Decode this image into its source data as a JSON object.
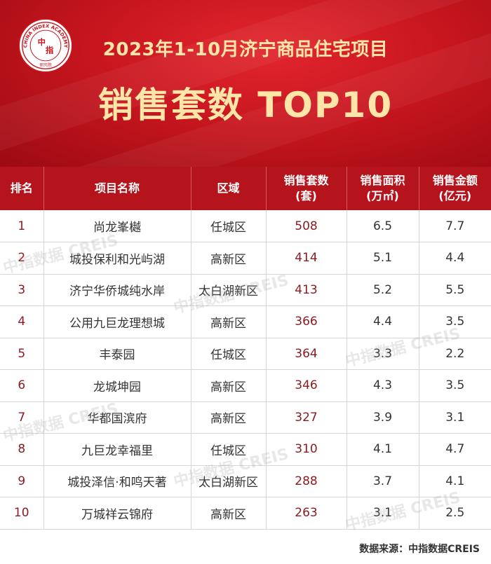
{
  "header": {
    "logo_text_ring": "CHINA INDEX ACADEMY",
    "logo_text_center_top": "中",
    "logo_text_center_bottom": "指",
    "logo_text_bottom": "研究院",
    "title_line1": "2023年1-10月济宁商品住宅项目",
    "title_line2": "销售套数 TOP10"
  },
  "table": {
    "columns": [
      {
        "label": "排名",
        "sub": ""
      },
      {
        "label": "项目名称",
        "sub": ""
      },
      {
        "label": "区域",
        "sub": ""
      },
      {
        "label": "销售套数",
        "sub": "(套)"
      },
      {
        "label": "销售面积",
        "sub": "(万㎡)"
      },
      {
        "label": "销售金额",
        "sub": "(亿元)"
      }
    ],
    "rows": [
      {
        "rank": "1",
        "name": "尚龙峯樾",
        "district": "任城区",
        "units": "508",
        "area": "6.5",
        "amount": "7.7"
      },
      {
        "rank": "2",
        "name": "城投保利和光屿湖",
        "district": "高新区",
        "units": "414",
        "area": "5.1",
        "amount": "4.4"
      },
      {
        "rank": "3",
        "name": "济宁华侨城纯水岸",
        "district": "太白湖新区",
        "units": "413",
        "area": "5.2",
        "amount": "5.5"
      },
      {
        "rank": "4",
        "name": "公用九巨龙理想城",
        "district": "高新区",
        "units": "366",
        "area": "4.4",
        "amount": "3.5"
      },
      {
        "rank": "5",
        "name": "丰泰园",
        "district": "任城区",
        "units": "364",
        "area": "3.3",
        "amount": "2.2"
      },
      {
        "rank": "6",
        "name": "龙城坤园",
        "district": "高新区",
        "units": "346",
        "area": "4.3",
        "amount": "3.5"
      },
      {
        "rank": "7",
        "name": "华都国滨府",
        "district": "高新区",
        "units": "327",
        "area": "3.9",
        "amount": "3.1"
      },
      {
        "rank": "8",
        "name": "九巨龙幸福里",
        "district": "任城区",
        "units": "310",
        "area": "4.1",
        "amount": "4.7"
      },
      {
        "rank": "9",
        "name": "城投泽信·和鸣天著",
        "district": "太白湖新区",
        "units": "288",
        "area": "3.7",
        "amount": "4.1"
      },
      {
        "rank": "10",
        "name": "万城祥云锦府",
        "district": "高新区",
        "units": "263",
        "area": "3.1",
        "amount": "2.5"
      }
    ]
  },
  "footer": {
    "source": "数据来源：中指数据CREIS"
  },
  "watermark": {
    "text": "中指数据 CREIS"
  },
  "colors": {
    "banner_red": "#c8161f",
    "header_red": "#b5141c",
    "title_gold": "#ffe6a8",
    "rank_text": "#8b1a1f"
  }
}
